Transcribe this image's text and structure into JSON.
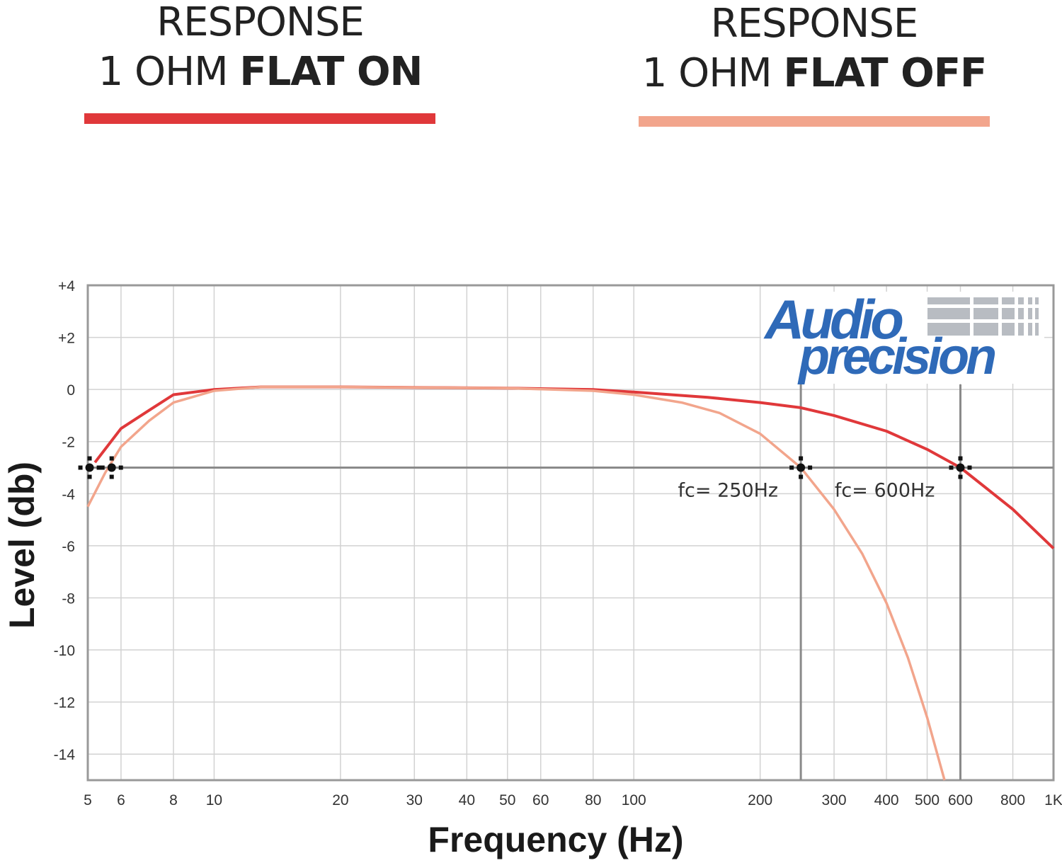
{
  "chart_data": {
    "type": "line",
    "xscale": "log",
    "xlim": [
      5,
      1000
    ],
    "ylim": [
      -15,
      4
    ],
    "grid": true,
    "xlabel": "Frequency (Hz)",
    "ylabel": "Level (db)",
    "xticks": [
      {
        "value": 5,
        "label": "5"
      },
      {
        "value": 6,
        "label": "6"
      },
      {
        "value": 8,
        "label": "8"
      },
      {
        "value": 10,
        "label": "10"
      },
      {
        "value": 20,
        "label": "20"
      },
      {
        "value": 30,
        "label": "30"
      },
      {
        "value": 40,
        "label": "40"
      },
      {
        "value": 50,
        "label": "50"
      },
      {
        "value": 60,
        "label": "60"
      },
      {
        "value": 80,
        "label": "80"
      },
      {
        "value": 100,
        "label": "100"
      },
      {
        "value": 200,
        "label": "200"
      },
      {
        "value": 300,
        "label": "300"
      },
      {
        "value": 400,
        "label": "400"
      },
      {
        "value": 500,
        "label": "500"
      },
      {
        "value": 600,
        "label": "600"
      },
      {
        "value": 800,
        "label": "800"
      },
      {
        "value": 1000,
        "label": "1K"
      }
    ],
    "yticks": [
      {
        "value": 4,
        "label": "+4"
      },
      {
        "value": 2,
        "label": "+2"
      },
      {
        "value": 0,
        "label": "0"
      },
      {
        "value": -2,
        "label": "-2"
      },
      {
        "value": -4,
        "label": "-4"
      },
      {
        "value": -6,
        "label": "-6"
      },
      {
        "value": -8,
        "label": "-8"
      },
      {
        "value": -10,
        "label": "-10"
      },
      {
        "value": -12,
        "label": "-12"
      },
      {
        "value": -14,
        "label": "-14"
      }
    ],
    "legend_placement": "top",
    "series": [
      {
        "name": "RESPONSE 1 OHM FLAT ON",
        "color": "#e0383a",
        "x": [
          5.2,
          6,
          7,
          8,
          10,
          13,
          20,
          50,
          80,
          100,
          150,
          200,
          250,
          300,
          400,
          500,
          600,
          800,
          1000
        ],
        "y": [
          -2.8,
          -1.5,
          -0.8,
          -0.2,
          0.0,
          0.1,
          0.1,
          0.05,
          0.0,
          -0.1,
          -0.3,
          -0.5,
          -0.7,
          -1.0,
          -1.6,
          -2.3,
          -3.0,
          -4.6,
          -6.1
        ]
      },
      {
        "name": "RESPONSE 1 OHM FLAT OFF",
        "color": "#f2a58c",
        "x": [
          5,
          5.5,
          6,
          7,
          8,
          10,
          13,
          20,
          50,
          80,
          100,
          130,
          160,
          200,
          250,
          300,
          350,
          400,
          450,
          500,
          550
        ],
        "y": [
          -4.5,
          -3.2,
          -2.2,
          -1.2,
          -0.5,
          -0.05,
          0.1,
          0.1,
          0.05,
          -0.05,
          -0.2,
          -0.5,
          -0.9,
          -1.7,
          -3.0,
          -4.6,
          -6.3,
          -8.2,
          -10.3,
          -12.6,
          -15.0
        ]
      }
    ],
    "reference_level": -3,
    "markers": [
      {
        "x": 5.05,
        "y": -3
      },
      {
        "x": 5.7,
        "y": -3
      },
      {
        "x": 250,
        "y": -3,
        "label": "fc= 250Hz"
      },
      {
        "x": 600,
        "y": -3,
        "label": "fc= 600Hz"
      }
    ]
  },
  "legend": {
    "on": {
      "line1": "RESPONSE",
      "line2_regular": "1 OHM ",
      "line2_bold": "FLAT ON",
      "color": "#e0383a"
    },
    "off": {
      "line1": "RESPONSE",
      "line2_regular": "1 OHM ",
      "line2_bold": "FLAT OFF",
      "color": "#f2a58c"
    }
  },
  "logo": {
    "text": "Audio precision",
    "color": "#2f6ab8",
    "bar_color": "#b8bcc2"
  }
}
